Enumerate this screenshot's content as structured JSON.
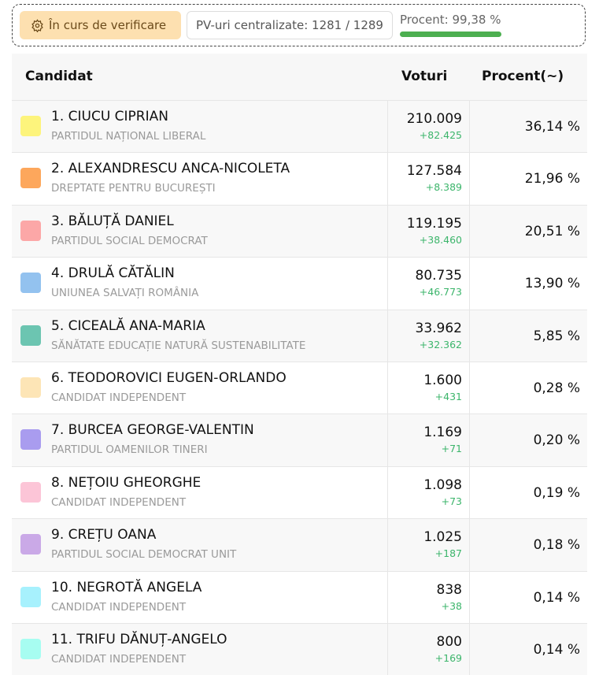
{
  "status": {
    "badge": "În curs de verificare",
    "pv": "PV-uri centralizate: 1281 / 1289",
    "percent": "Procent: 99,38 %"
  },
  "table": {
    "headers": [
      "Candidat",
      "Voturi",
      "Procent(~)"
    ],
    "rows": [
      {
        "name": "1. CIUCU CIPRIAN",
        "party": "PARTIDUL NAȚIONAL LIBERAL",
        "votes": "210.009",
        "delta": "+82.425",
        "percent": "36,14 %",
        "color": "#fdf47c"
      },
      {
        "name": "2. ALEXANDRESCU ANCA-NICOLETA",
        "party": "DREPTATE PENTRU BUCUREȘTI",
        "votes": "127.584",
        "delta": "+8.389",
        "percent": "21,96 %",
        "color": "#fda75c"
      },
      {
        "name": "3. BĂLUȚĂ DANIEL",
        "party": "PARTIDUL SOCIAL DEMOCRAT",
        "votes": "119.195",
        "delta": "+38.460",
        "percent": "20,51 %",
        "color": "#fca7a7"
      },
      {
        "name": "4. DRULĂ CĂTĂLIN",
        "party": "UNIUNEA SALVAȚI ROMÂNIA",
        "votes": "80.735",
        "delta": "+46.773",
        "percent": "13,90 %",
        "color": "#93c2ef"
      },
      {
        "name": "5. CICEALĂ ANA-MARIA",
        "party": "SĂNĂTATE EDUCAȚIE NATURĂ SUSTENABILITATE",
        "votes": "33.962",
        "delta": "+32.362",
        "percent": "5,85 %",
        "color": "#6cc5b1"
      },
      {
        "name": "6. TEODOROVICI EUGEN-ORLANDO",
        "party": "CANDIDAT INDEPENDENT",
        "votes": "1.600",
        "delta": "+431",
        "percent": "0,28 %",
        "color": "#fde5b6"
      },
      {
        "name": "7. BURCEA GEORGE-VALENTIN",
        "party": "PARTIDUL OAMENILOR TINERI",
        "votes": "1.169",
        "delta": "+71",
        "percent": "0,20 %",
        "color": "#a99cef"
      },
      {
        "name": "8. NEȚOIU GHEORGHE",
        "party": "CANDIDAT INDEPENDENT",
        "votes": "1.098",
        "delta": "+73",
        "percent": "0,19 %",
        "color": "#fcc5d7"
      },
      {
        "name": "9. CREȚU OANA",
        "party": "PARTIDUL SOCIAL DEMOCRAT UNIT",
        "votes": "1.025",
        "delta": "+187",
        "percent": "0,18 %",
        "color": "#caa9e7"
      },
      {
        "name": "10. NEGROTĂ ANGELA",
        "party": "CANDIDAT INDEPENDENT",
        "votes": "838",
        "delta": "+38",
        "percent": "0,14 %",
        "color": "#a7f1fd"
      },
      {
        "name": "11. TRIFU DĂNUȚ-ANGELO",
        "party": "CANDIDAT INDEPENDENT",
        "votes": "800",
        "delta": "+169",
        "percent": "0,14 %",
        "color": "#a7fdf1"
      }
    ]
  }
}
